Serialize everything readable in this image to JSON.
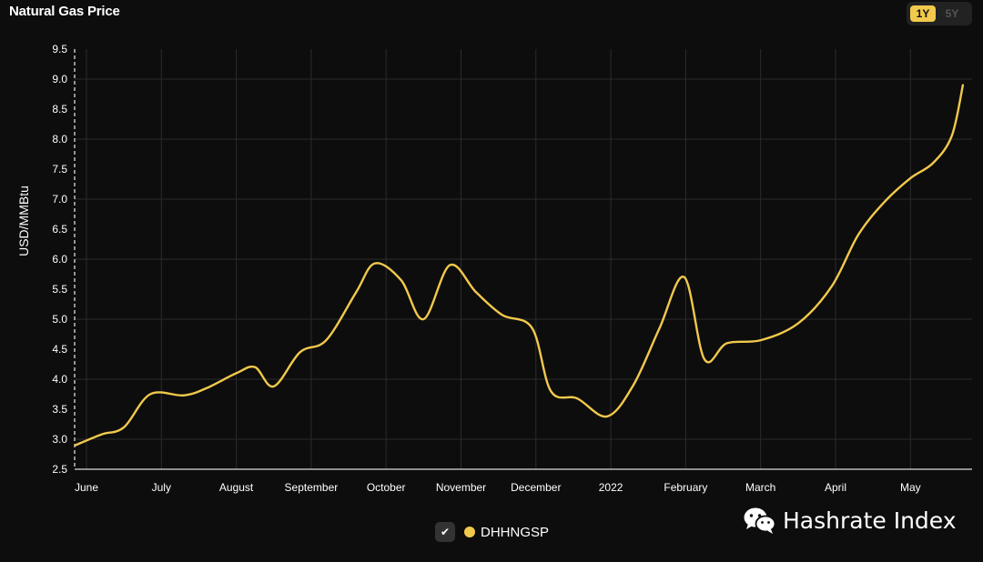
{
  "header": {
    "title": "Natural Gas Price",
    "range_options": [
      {
        "label": "1Y",
        "active": true
      },
      {
        "label": "5Y",
        "active": false
      }
    ]
  },
  "legend": {
    "series_label": "DHHNGSP",
    "checkmark": "✔"
  },
  "watermark": {
    "text": "Hashrate Index",
    "icon": "wechat-icon"
  },
  "colors": {
    "background": "#0d0d0d",
    "line": "#f2c94c",
    "grid": "#2c2c2c"
  },
  "chart_data": {
    "type": "line",
    "ylabel": "USD/MMBtu",
    "ylim": [
      2.5,
      9.5
    ],
    "yticks": [
      2.5,
      3.0,
      3.5,
      4.0,
      4.5,
      5.0,
      5.5,
      6.0,
      6.5,
      7.0,
      7.5,
      8.0,
      8.5,
      9.0,
      9.5
    ],
    "x_range": [
      0,
      11.75
    ],
    "xticks": [
      {
        "label": "June",
        "pos": 0
      },
      {
        "label": "July",
        "pos": 1
      },
      {
        "label": "August",
        "pos": 2
      },
      {
        "label": "September",
        "pos": 3
      },
      {
        "label": "October",
        "pos": 4
      },
      {
        "label": "November",
        "pos": 5
      },
      {
        "label": "December",
        "pos": 6
      },
      {
        "label": "2022",
        "pos": 7
      },
      {
        "label": "February",
        "pos": 8
      },
      {
        "label": "March",
        "pos": 9
      },
      {
        "label": "April",
        "pos": 10
      },
      {
        "label": "May",
        "pos": 11
      }
    ],
    "grid": true,
    "legend_position": "bottom-center",
    "series": [
      {
        "name": "DHHNGSP",
        "color": "#f2c94c",
        "points": [
          [
            -0.15,
            2.9
          ],
          [
            0.2,
            3.08
          ],
          [
            0.5,
            3.2
          ],
          [
            0.85,
            3.75
          ],
          [
            1.3,
            3.73
          ],
          [
            1.6,
            3.85
          ],
          [
            2.0,
            4.1
          ],
          [
            2.25,
            4.2
          ],
          [
            2.5,
            3.88
          ],
          [
            2.85,
            4.45
          ],
          [
            3.2,
            4.65
          ],
          [
            3.6,
            5.45
          ],
          [
            3.85,
            5.93
          ],
          [
            4.2,
            5.65
          ],
          [
            4.5,
            5.0
          ],
          [
            4.85,
            5.9
          ],
          [
            5.2,
            5.45
          ],
          [
            5.55,
            5.07
          ],
          [
            5.95,
            4.85
          ],
          [
            6.2,
            3.8
          ],
          [
            6.55,
            3.68
          ],
          [
            6.95,
            3.38
          ],
          [
            7.3,
            3.9
          ],
          [
            7.65,
            4.85
          ],
          [
            7.98,
            5.7
          ],
          [
            8.25,
            4.33
          ],
          [
            8.55,
            4.6
          ],
          [
            9.0,
            4.65
          ],
          [
            9.5,
            4.93
          ],
          [
            9.95,
            5.55
          ],
          [
            10.3,
            6.4
          ],
          [
            10.65,
            6.95
          ],
          [
            11.0,
            7.35
          ],
          [
            11.3,
            7.6
          ],
          [
            11.55,
            8.05
          ],
          [
            11.7,
            8.9
          ]
        ]
      }
    ]
  }
}
